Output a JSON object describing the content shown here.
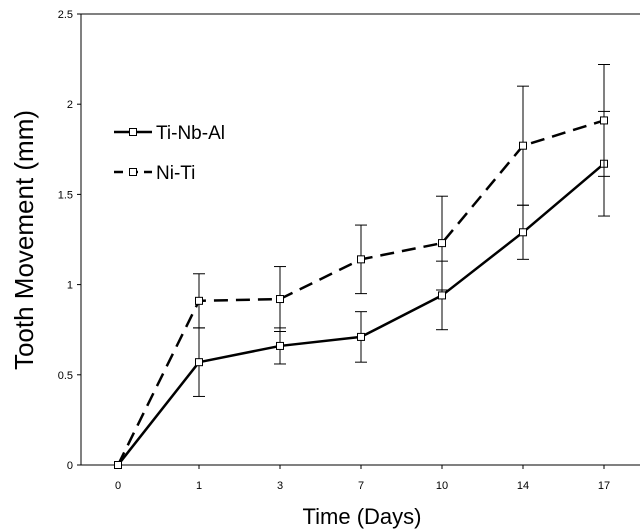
{
  "chart_data": {
    "type": "line",
    "xlabel": "Time (Days)",
    "ylabel": "Tooth Movement (mm)",
    "categories": [
      "0",
      "1",
      "3",
      "7",
      "10",
      "14",
      "17"
    ],
    "yticks": [
      "0",
      "0.5",
      "1",
      "1.5",
      "2",
      "2.5"
    ],
    "ylim": [
      0,
      2.5
    ],
    "grid": false,
    "legend_position": "top-left",
    "series": [
      {
        "name": "Ti-Nb-Al",
        "line_style": "solid",
        "marker": "square",
        "color": "#000000",
        "values": [
          0,
          0.57,
          0.66,
          0.71,
          0.94,
          1.29,
          1.67
        ],
        "error": [
          0,
          0.19,
          0.1,
          0.14,
          0.19,
          0.15,
          0.29
        ]
      },
      {
        "name": "Ni-Ti",
        "line_style": "dashed",
        "marker": "square",
        "color": "#000000",
        "values": [
          0,
          0.91,
          0.92,
          1.14,
          1.23,
          1.77,
          1.91
        ],
        "error": [
          0,
          0.15,
          0.18,
          0.19,
          0.26,
          0.33,
          0.31
        ]
      }
    ]
  }
}
